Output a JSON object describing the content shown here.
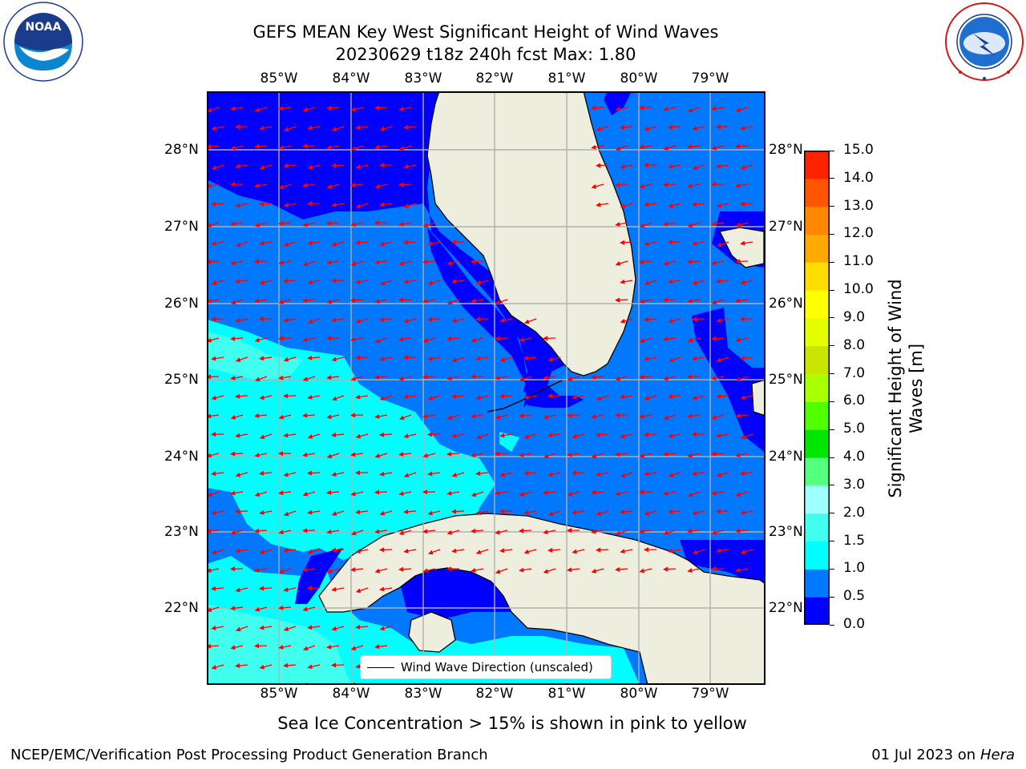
{
  "title": {
    "line1": "GEFS MEAN Key West Significant Height of Wind Waves",
    "line2": "20230629 t18z 240h fcst   Max: 1.80"
  },
  "logos": {
    "left": {
      "name": "noaa-logo",
      "text": "NOAA",
      "ring_text": "NATIONAL OCEANIC AND ATMOSPHERIC ADMINISTRATION · U.S. DEPARTMENT OF COMMERCE"
    },
    "right": {
      "name": "nws-logo",
      "ring_text": "NATIONAL WEATHER SERVICE"
    }
  },
  "map": {
    "lon_labels": [
      "85°W",
      "84°W",
      "83°W",
      "82°W",
      "81°W",
      "80°W",
      "79°W"
    ],
    "lat_labels": [
      "28°N",
      "27°N",
      "26°N",
      "25°N",
      "24°N",
      "23°N",
      "22°N"
    ],
    "extent": {
      "lon_min": -86.0,
      "lon_max": -78.3,
      "lat_min": 21.0,
      "lat_max": 28.8
    },
    "legend_label": "Wind Wave Direction (unscaled)",
    "arrow_color": "#ff0000",
    "land_color": "#eeeedf",
    "grid_color": "#b0b0b0"
  },
  "colorbar": {
    "label": "Significant Height of Wind Waves [m]",
    "label_line1": "Significant Height of Wind",
    "label_line2": "Waves [m]",
    "ticks": [
      "15.0",
      "14.0",
      "13.0",
      "12.0",
      "11.0",
      "10.0",
      "9.0",
      "8.0",
      "7.0",
      "6.0",
      "5.0",
      "4.0",
      "3.0",
      "2.0",
      "1.5",
      "1.0",
      "0.5",
      "0.0"
    ],
    "colors_bottom_to_top": [
      "#0000ff",
      "#0078ff",
      "#00ffff",
      "#40ffef",
      "#a0ffff",
      "#55ff80",
      "#00e600",
      "#50ff00",
      "#aaff00",
      "#c8e600",
      "#e6ff00",
      "#ffff00",
      "#ffdd00",
      "#ffaa00",
      "#ff8800",
      "#ff5500",
      "#ff2200"
    ]
  },
  "chart_data": {
    "type": "heatmap",
    "title": "GEFS MEAN Key West Significant Height of Wind Waves",
    "subtitle": "20230629 t18z 240h fcst   Max: 1.80",
    "variable": "Significant Height of Wind Waves [m]",
    "max": 1.8,
    "levels": [
      0.0,
      0.5,
      1.0,
      1.5,
      2.0,
      3.0,
      4.0,
      5.0,
      6.0,
      7.0,
      8.0,
      9.0,
      10.0,
      11.0,
      12.0,
      13.0,
      14.0,
      15.0
    ],
    "x_ticks": [
      "85°W",
      "84°W",
      "83°W",
      "82°W",
      "81°W",
      "80°W",
      "79°W"
    ],
    "y_ticks": [
      "28°N",
      "27°N",
      "26°N",
      "25°N",
      "24°N",
      "23°N",
      "22°N"
    ],
    "xlim": [
      -86.0,
      -78.3
    ],
    "ylim": [
      21.0,
      28.8
    ],
    "grid": true,
    "legend": "bottom-center"
  },
  "subcaption": "Sea Ice Concentration > 15% is shown in pink to yellow",
  "footer": {
    "left": "NCEP/EMC/Verification Post Processing Product Generation Branch",
    "right_prefix": "01 Jul 2023 on ",
    "right_machine": "Hera"
  }
}
